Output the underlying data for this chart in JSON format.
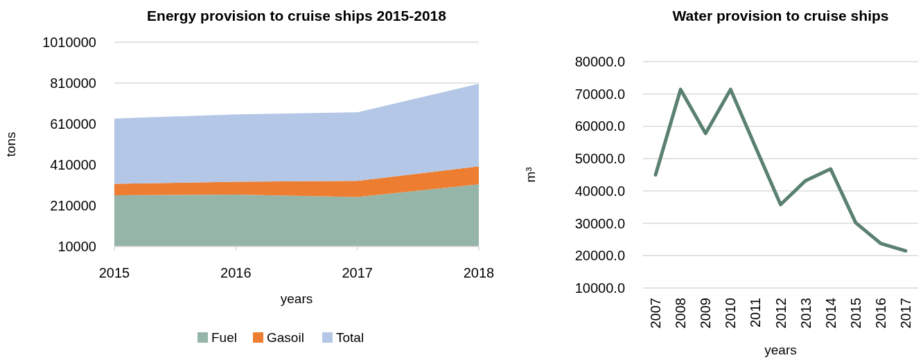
{
  "chart_data": [
    {
      "type": "area",
      "title": "Energy provision to cruise ships 2015-2018",
      "xlabel": "years",
      "ylabel": "tons",
      "stacked": true,
      "x": [
        2015,
        2016,
        2017,
        2018
      ],
      "xlim": [
        2015,
        2018
      ],
      "xticks": [
        2015,
        2016,
        2017,
        2018
      ],
      "ylim": [
        10000,
        1010000
      ],
      "yticks": [
        10000,
        210000,
        410000,
        610000,
        810000,
        1010000
      ],
      "series": [
        {
          "name": "Fuel",
          "color": "#96b5a9",
          "values": [
            261000,
            264000,
            252000,
            314000
          ]
        },
        {
          "name": "Gasoil",
          "color": "#ed7d31",
          "values": [
            56000,
            63000,
            79000,
            88000
          ]
        },
        {
          "name": "Total",
          "color": "#b4c7e7",
          "values": [
            319000,
            330000,
            336000,
            405000
          ]
        }
      ],
      "grid": "y",
      "legend": "bottom"
    },
    {
      "type": "line",
      "title": "Water provision to cruise ships",
      "xlabel": "years",
      "ylabel": "m³",
      "categories": [
        "2007",
        "2008",
        "2009",
        "2010",
        "2011",
        "2012",
        "2013",
        "2014",
        "2015",
        "2016",
        "2017"
      ],
      "ylim": [
        10000,
        80000
      ],
      "yticks": [
        {
          "value": 10000,
          "label": "10000.0"
        },
        {
          "value": 20000,
          "label": "20000.0"
        },
        {
          "value": 30000,
          "label": "30000.0"
        },
        {
          "value": 40000,
          "label": "40000.0"
        },
        {
          "value": 50000,
          "label": "50000.0"
        },
        {
          "value": 60000,
          "label": "60000.0"
        },
        {
          "value": 70000,
          "label": "70000.0"
        },
        {
          "value": 80000,
          "label": "80000.0"
        }
      ],
      "series": [
        {
          "color": "#5a8170",
          "values": [
            45000,
            71400,
            57800,
            71400,
            53500,
            35800,
            43200,
            46800,
            30200,
            23800,
            21500
          ]
        }
      ],
      "grid": "y",
      "legend": false,
      "marker": "none",
      "line_style": "solid"
    }
  ]
}
